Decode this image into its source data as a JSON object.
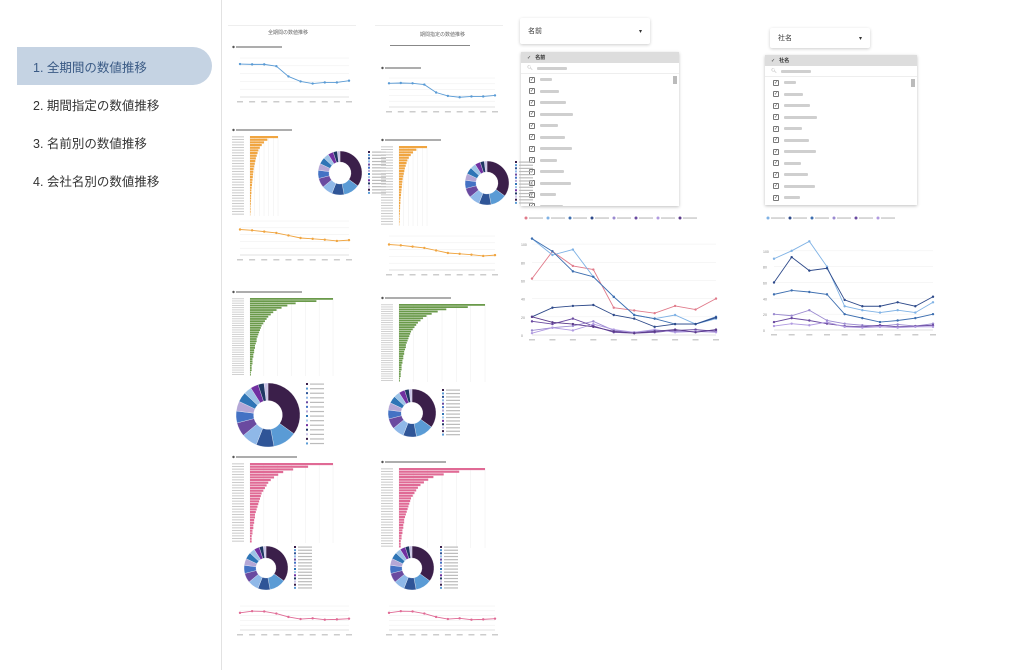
{
  "sidebar": {
    "items": [
      {
        "label": "1. 全期間の数値推移",
        "active": true
      },
      {
        "label": "2. 期間指定の数値推移"
      },
      {
        "label": "3. 名前別の数値推移"
      },
      {
        "label": "4. 会社名別の数値推移"
      }
    ]
  },
  "panels": {
    "all_period_title": "全期間の数値推移",
    "range_title": "期間指定の数値推移"
  },
  "name_filter": {
    "selected": "名前",
    "header": "名前",
    "icon": "chevron-down-icon"
  },
  "company_filter": {
    "selected": "社名",
    "header": "社名",
    "icon": "chevron-down-icon"
  },
  "colors": {
    "accent": "#c5d3e3",
    "orange": "#f0a540",
    "green": "#6a9a4a",
    "pink": "#e06a95",
    "blue": "#5a9bd5",
    "dark": "#3b1f4a"
  },
  "chart_data": [
    {
      "type": "line",
      "name": "all-period-trend",
      "x": [
        2014,
        2015,
        2016,
        2017,
        2018,
        2019,
        2020,
        2021,
        2022,
        2023
      ],
      "values": [
        93,
        92,
        92,
        87,
        58,
        44,
        38,
        41,
        41,
        46
      ],
      "ylim": [
        0,
        110
      ]
    },
    {
      "type": "line",
      "name": "range-trend",
      "x": [
        2014,
        2015,
        2016,
        2017,
        2018,
        2019,
        2020,
        2021,
        2022,
        2023
      ],
      "values": [
        90,
        91,
        90,
        85,
        55,
        42,
        37,
        40,
        40,
        44
      ],
      "ylim": [
        0,
        110
      ]
    },
    {
      "type": "bar",
      "name": "orange-bars",
      "color": "#f0a540",
      "values": [
        100,
        62,
        50,
        42,
        35,
        30,
        27,
        24,
        21,
        19,
        17,
        15,
        13,
        12,
        11,
        10,
        9,
        8,
        7,
        6,
        5,
        5,
        4,
        4,
        3,
        3,
        2,
        2,
        2,
        1
      ]
    },
    {
      "type": "bar",
      "name": "green-bars",
      "color": "#6a9a4a",
      "values": [
        100,
        80,
        55,
        45,
        38,
        32,
        28,
        25,
        22,
        20,
        18,
        16,
        14,
        13,
        12,
        11,
        10,
        9,
        8,
        8,
        7,
        6,
        6,
        5,
        5,
        4,
        4,
        3,
        3,
        3,
        2,
        2,
        2,
        1,
        1
      ]
    },
    {
      "type": "bar",
      "name": "pink-bars",
      "color": "#e06a95",
      "values": [
        100,
        70,
        52,
        40,
        34,
        29,
        25,
        22,
        20,
        18,
        16,
        14,
        13,
        12,
        11,
        10,
        9,
        8,
        7,
        6,
        6,
        5,
        5,
        4,
        4,
        3,
        3,
        2,
        2,
        2
      ]
    },
    {
      "type": "pie",
      "name": "donut",
      "values": [
        35,
        12,
        9,
        8,
        7,
        6,
        5,
        5,
        4,
        4,
        3,
        2
      ]
    },
    {
      "type": "line",
      "name": "orange-trend",
      "values": [
        60,
        58,
        55,
        52,
        46,
        40,
        38,
        36,
        33,
        35
      ],
      "ylim": [
        0,
        80
      ]
    },
    {
      "type": "line",
      "name": "pink-trend",
      "values": [
        50,
        55,
        54,
        48,
        38,
        32,
        34,
        30,
        31,
        33
      ],
      "ylim": [
        0,
        70
      ]
    },
    {
      "type": "line",
      "name": "by-name",
      "x": [
        2014,
        2015,
        2016,
        2017,
        2018,
        2019,
        2020,
        2021,
        2022,
        2023
      ],
      "ylim": [
        0,
        110
      ],
      "yticks": [
        0,
        20,
        40,
        60,
        80,
        100
      ],
      "series": [
        {
          "color": "#e07a8a",
          "values": [
            62,
            92,
            76,
            72,
            30,
            27,
            24,
            32,
            28,
            40
          ]
        },
        {
          "color": "#7fb2e5",
          "values": [
            106,
            88,
            94,
            64,
            42,
            22,
            18,
            22,
            12,
            18
          ]
        },
        {
          "color": "#3e6fb0",
          "values": [
            106,
            92,
            70,
            64,
            42,
            22,
            18,
            12,
            12,
            20
          ]
        },
        {
          "color": "#2e4a8a",
          "values": [
            20,
            30,
            32,
            33,
            22,
            18,
            9,
            12,
            12,
            19
          ]
        },
        {
          "color": "#9b8ad0",
          "values": [
            5,
            8,
            10,
            15,
            5,
            3,
            5,
            4,
            4,
            5
          ]
        },
        {
          "color": "#6a4aa0",
          "values": [
            15,
            12,
            18,
            10,
            3,
            2,
            3,
            5,
            6,
            4
          ]
        },
        {
          "color": "#b09ae0",
          "values": [
            2,
            8,
            5,
            12,
            6,
            3,
            6,
            3,
            4,
            3
          ]
        },
        {
          "color": "#5a3a8a",
          "values": [
            20,
            14,
            12,
            9,
            4,
            2,
            4,
            6,
            3,
            6
          ]
        }
      ]
    },
    {
      "type": "line",
      "name": "by-company",
      "x": [
        2014,
        2015,
        2016,
        2017,
        2018,
        2019,
        2020,
        2021,
        2022,
        2023
      ],
      "ylim": [
        0,
        120
      ],
      "yticks": [
        0,
        20,
        40,
        60,
        80,
        100
      ],
      "series": [
        {
          "color": "#7fb2e5",
          "values": [
            90,
            100,
            112,
            80,
            30,
            25,
            22,
            25,
            22,
            35
          ]
        },
        {
          "color": "#2e4a8a",
          "values": [
            60,
            92,
            75,
            78,
            38,
            30,
            30,
            35,
            30,
            42
          ]
        },
        {
          "color": "#3e6fb0",
          "values": [
            45,
            50,
            48,
            45,
            20,
            15,
            10,
            12,
            15,
            20
          ]
        },
        {
          "color": "#9b8ad0",
          "values": [
            20,
            18,
            25,
            12,
            8,
            6,
            5,
            7,
            5,
            8
          ]
        },
        {
          "color": "#6a4aa0",
          "values": [
            10,
            15,
            12,
            8,
            5,
            4,
            6,
            4,
            5,
            6
          ]
        },
        {
          "color": "#b09ae0",
          "values": [
            5,
            8,
            6,
            10,
            4,
            3,
            4,
            3,
            4,
            4
          ]
        }
      ]
    }
  ]
}
